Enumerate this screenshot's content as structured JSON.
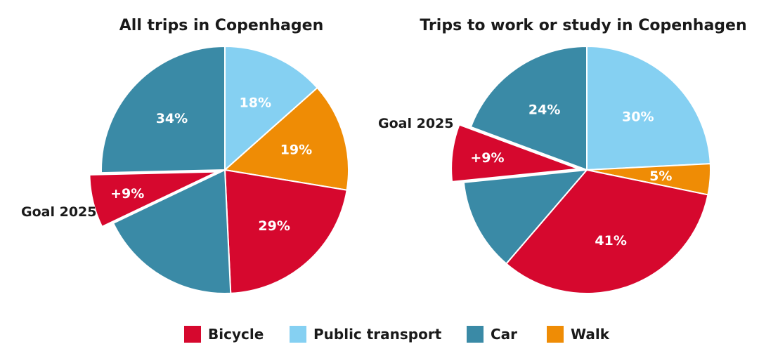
{
  "colors": {
    "Bicycle": "#d6082e",
    "Public transport": "#85d0f2",
    "Car": "#3a8aa6",
    "Walk": "#ef8c05"
  },
  "legend": [
    "Bicycle",
    "Public transport",
    "Car",
    "Walk"
  ],
  "chart_data": [
    {
      "type": "pie",
      "title": "All trips in Copenhagen",
      "slices": [
        {
          "category": "Public transport",
          "value": 18,
          "label": "18%"
        },
        {
          "category": "Walk",
          "value": 19,
          "label": "19%"
        },
        {
          "category": "Bicycle",
          "value": 29,
          "label": "29%"
        },
        {
          "category": "Car",
          "value": 25,
          "label": ""
        },
        {
          "category": "Bicycle",
          "value": 9,
          "label": "+9%",
          "note": "Goal 2025",
          "exploded": true
        },
        {
          "category": "Car",
          "value": 34,
          "label": "34%"
        }
      ]
    },
    {
      "type": "pie",
      "title": "Trips to work or study in Copenhagen",
      "slices": [
        {
          "category": "Public transport",
          "value": 30,
          "label": "30%"
        },
        {
          "category": "Walk",
          "value": 5,
          "label": "5%"
        },
        {
          "category": "Bicycle",
          "value": 41,
          "label": "41%"
        },
        {
          "category": "Car",
          "value": 15,
          "label": ""
        },
        {
          "category": "Bicycle",
          "value": 9,
          "label": "+9%",
          "note": "Goal 2025",
          "exploded": true
        },
        {
          "category": "Car",
          "value": 24,
          "label": "24%"
        }
      ]
    }
  ]
}
